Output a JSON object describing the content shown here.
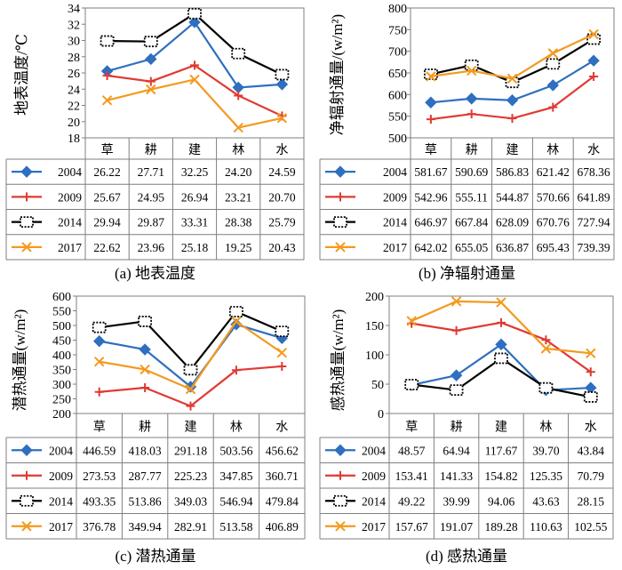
{
  "chart_data": [
    {
      "type": "line",
      "caption": "(a) 地表温度",
      "ylabel": "地表温度/℃",
      "ylim": [
        18,
        34
      ],
      "yticks": [
        18,
        20,
        22,
        24,
        26,
        28,
        30,
        32,
        34
      ],
      "categories": [
        "草",
        "耕",
        "建",
        "林",
        "水"
      ],
      "series": [
        {
          "name": "2004",
          "color": "#2e6fbf",
          "marker": "diamond",
          "values": [
            26.22,
            27.71,
            32.25,
            24.2,
            24.59
          ],
          "labels": [
            "26.22",
            "27.71",
            "32.25",
            "24.20",
            "24.59"
          ]
        },
        {
          "name": "2009",
          "color": "#e03a33",
          "marker": "plus",
          "values": [
            25.67,
            24.95,
            26.94,
            23.21,
            20.7
          ],
          "labels": [
            "25.67",
            "24.95",
            "26.94",
            "23.21",
            "20.70"
          ]
        },
        {
          "name": "2014",
          "color": "#000000",
          "marker": "dotted-square",
          "values": [
            29.94,
            29.87,
            33.31,
            28.38,
            25.79
          ],
          "labels": [
            "29.94",
            "29.87",
            "33.31",
            "28.38",
            "25.79"
          ]
        },
        {
          "name": "2017",
          "color": "#f39a1e",
          "marker": "x",
          "values": [
            22.62,
            23.96,
            25.18,
            19.25,
            20.43
          ],
          "labels": [
            "22.62",
            "23.96",
            "25.18",
            "19.25",
            "20.43"
          ]
        }
      ]
    },
    {
      "type": "line",
      "caption": "(b) 净辐射通量",
      "ylabel": "净辐射通量/(w/m²)",
      "ylim": [
        500,
        800
      ],
      "yticks": [
        500,
        550,
        600,
        650,
        700,
        750,
        800
      ],
      "categories": [
        "草",
        "耕",
        "建",
        "林",
        "水"
      ],
      "series": [
        {
          "name": "2004",
          "color": "#2e6fbf",
          "marker": "diamond",
          "values": [
            581.67,
            590.69,
            586.83,
            621.42,
            678.36
          ],
          "labels": [
            "581.67",
            "590.69",
            "586.83",
            "621.42",
            "678.36"
          ]
        },
        {
          "name": "2009",
          "color": "#e03a33",
          "marker": "plus",
          "values": [
            542.96,
            555.11,
            544.87,
            570.66,
            641.89
          ],
          "labels": [
            "542.96",
            "555.11",
            "544.87",
            "570.66",
            "641.89"
          ]
        },
        {
          "name": "2014",
          "color": "#000000",
          "marker": "dotted-square",
          "values": [
            646.97,
            667.84,
            628.09,
            670.76,
            727.94
          ],
          "labels": [
            "646.97",
            "667.84",
            "628.09",
            "670.76",
            "727.94"
          ]
        },
        {
          "name": "2017",
          "color": "#f39a1e",
          "marker": "x",
          "values": [
            642.02,
            655.05,
            636.87,
            695.43,
            739.39
          ],
          "labels": [
            "642.02",
            "655.05",
            "636.87",
            "695.43",
            "739.39"
          ]
        }
      ]
    },
    {
      "type": "line",
      "caption": "(c) 潜热通量",
      "ylabel": "潜热通量(w/m²)",
      "ylim": [
        200,
        600
      ],
      "yticks": [
        200,
        250,
        300,
        350,
        400,
        450,
        500,
        550,
        600
      ],
      "categories": [
        "草",
        "耕",
        "建",
        "林",
        "水"
      ],
      "series": [
        {
          "name": "2004",
          "color": "#2e6fbf",
          "marker": "diamond",
          "values": [
            446.59,
            418.03,
            291.18,
            503.56,
            456.62
          ],
          "labels": [
            "446.59",
            "418.03",
            "291.18",
            "503.56",
            "456.62"
          ]
        },
        {
          "name": "2009",
          "color": "#e03a33",
          "marker": "plus",
          "values": [
            273.53,
            287.77,
            225.23,
            347.85,
            360.71
          ],
          "labels": [
            "273.53",
            "287.77",
            "225.23",
            "347.85",
            "360.71"
          ]
        },
        {
          "name": "2014",
          "color": "#000000",
          "marker": "dotted-square",
          "values": [
            493.35,
            513.86,
            349.03,
            546.94,
            479.84
          ],
          "labels": [
            "493.35",
            "513.86",
            "349.03",
            "546.94",
            "479.84"
          ]
        },
        {
          "name": "2017",
          "color": "#f39a1e",
          "marker": "x",
          "values": [
            376.78,
            349.94,
            282.91,
            513.58,
            406.89
          ],
          "labels": [
            "376.78",
            "349.94",
            "282.91",
            "513.58",
            "406.89"
          ]
        }
      ]
    },
    {
      "type": "line",
      "caption": "(d) 感热通量",
      "ylabel": "感热通量(w/m²)",
      "ylim": [
        0,
        200
      ],
      "yticks": [
        0,
        50,
        100,
        150,
        200
      ],
      "categories": [
        "草",
        "耕",
        "建",
        "林",
        "水"
      ],
      "series": [
        {
          "name": "2004",
          "color": "#2e6fbf",
          "marker": "diamond",
          "values": [
            48.57,
            64.94,
            117.67,
            39.7,
            43.84
          ],
          "labels": [
            "48.57",
            "64.94",
            "117.67",
            "39.70",
            "43.84"
          ]
        },
        {
          "name": "2009",
          "color": "#e03a33",
          "marker": "plus",
          "values": [
            153.41,
            141.33,
            154.82,
            125.35,
            70.79
          ],
          "labels": [
            "153.41",
            "141.33",
            "154.82",
            "125.35",
            "70.79"
          ]
        },
        {
          "name": "2014",
          "color": "#000000",
          "marker": "dotted-square",
          "values": [
            49.22,
            39.99,
            94.06,
            43.63,
            28.15
          ],
          "labels": [
            "49.22",
            "39.99",
            "94.06",
            "43.63",
            "28.15"
          ]
        },
        {
          "name": "2017",
          "color": "#f39a1e",
          "marker": "x",
          "values": [
            157.67,
            191.07,
            189.28,
            110.63,
            102.55
          ],
          "labels": [
            "157.67",
            "191.07",
            "189.28",
            "110.63",
            "102.55"
          ]
        }
      ]
    }
  ]
}
